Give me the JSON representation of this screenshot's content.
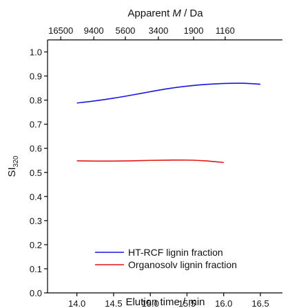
{
  "chart_data": {
    "type": "line",
    "xlabel": "Elution time / min",
    "ylabel_main": "SI",
    "ylabel_sub": "320",
    "top_axis_label_prefix": "Apparent ",
    "top_axis_label_italic": "M",
    "top_axis_label_suffix": " / Da",
    "xlim": [
      13.6,
      16.8
    ],
    "ylim": [
      0.0,
      1.05
    ],
    "x_ticks": [
      14.0,
      14.5,
      15.0,
      15.5,
      16.0,
      16.5
    ],
    "x_tick_labels": [
      "14.0",
      "14.5",
      "15.0",
      "15.5",
      "16.0",
      "16.5"
    ],
    "y_ticks": [
      0.0,
      0.1,
      0.2,
      0.3,
      0.4,
      0.5,
      0.6,
      0.7,
      0.8,
      0.9,
      1.0
    ],
    "y_tick_labels": [
      "0.0",
      "0.1",
      "0.2",
      "0.3",
      "0.4",
      "0.5",
      "0.6",
      "0.7",
      "0.8",
      "0.9",
      "1.0"
    ],
    "top_ticks": [
      {
        "label": "16500",
        "x": 13.78
      },
      {
        "label": "9400",
        "x": 14.23
      },
      {
        "label": "5600",
        "x": 14.66
      },
      {
        "label": "3400",
        "x": 15.11
      },
      {
        "label": "1900",
        "x": 15.59
      },
      {
        "label": "1160",
        "x": 16.02
      }
    ],
    "legend_position": "bottom-right",
    "series": [
      {
        "name": "HT-RCF lignin fraction",
        "color": "#1515e0",
        "x": [
          14.0,
          14.25,
          14.5,
          14.75,
          15.0,
          15.25,
          15.5,
          15.75,
          16.0,
          16.25,
          16.5
        ],
        "y": [
          0.788,
          0.797,
          0.808,
          0.821,
          0.835,
          0.848,
          0.858,
          0.865,
          0.869,
          0.87,
          0.866
        ]
      },
      {
        "name": "Organosolv lignin fraction",
        "color": "#e01515",
        "x": [
          14.0,
          14.25,
          14.5,
          14.75,
          15.0,
          15.25,
          15.5,
          15.75,
          16.0
        ],
        "y": [
          0.548,
          0.547,
          0.547,
          0.548,
          0.55,
          0.551,
          0.551,
          0.548,
          0.541
        ]
      }
    ]
  }
}
